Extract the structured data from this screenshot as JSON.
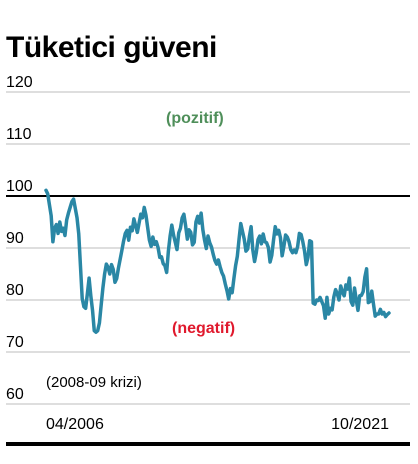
{
  "chart_data": {
    "type": "line",
    "title": "Tüketici güveni",
    "xlabel": "",
    "ylabel": "",
    "x_start": "04/2006",
    "x_end": "10/2021",
    "x_tick_labels": [
      "04/2006",
      "10/2021"
    ],
    "y_ticks": [
      60,
      70,
      80,
      90,
      100,
      110,
      120
    ],
    "ylim": [
      60,
      120
    ],
    "reference_line": 100,
    "grid": true,
    "annotations": {
      "positive": "(pozitif)",
      "negative": "(negatif)",
      "crisis": "(2008-09 krizi)"
    },
    "colors": {
      "line": "#2a87a5",
      "positive": "#4f8f5a",
      "negative": "#e0192d",
      "grid": "#bdbdbd",
      "reference": "#000000"
    },
    "series": [
      {
        "values": [
          101.1,
          100.4,
          98.3,
          96.2,
          91.2,
          93.8,
          94.5,
          92.8,
          95.0,
          93.2,
          93.8,
          92.4,
          95.4,
          96.7,
          97.8,
          98.9,
          99.4,
          97.6,
          95.8,
          92.7,
          86.5,
          80.3,
          78.7,
          78.4,
          81.2,
          84.2,
          80.8,
          78.0,
          74.1,
          73.8,
          74.1,
          75.6,
          79.0,
          82.3,
          85.0,
          86.9,
          86.3,
          85.0,
          86.8,
          85.9,
          83.4,
          84.1,
          86.1,
          87.8,
          89.5,
          91.3,
          92.8,
          93.4,
          91.5,
          94.0,
          93.3,
          95.6,
          94.3,
          93.0,
          94.8,
          96.5,
          95.8,
          97.8,
          96.3,
          93.9,
          91.5,
          90.3,
          92.1,
          90.7,
          91.2,
          90.1,
          88.2,
          88.3,
          87.0,
          86.6,
          85.3,
          89.4,
          92.3,
          94.4,
          92.5,
          91.1,
          89.7,
          92.9,
          93.8,
          95.8,
          96.5,
          94.3,
          91.7,
          93.5,
          93.0,
          90.6,
          91.1,
          95.0,
          96.1,
          94.8,
          96.7,
          93.5,
          91.5,
          89.9,
          92.3,
          91.0,
          90.2,
          88.8,
          87.6,
          86.9,
          87.7,
          86.4,
          85.3,
          84.6,
          83.1,
          81.8,
          80.2,
          82.2,
          81.4,
          84.1,
          86.6,
          88.4,
          91.7,
          94.7,
          93.2,
          91.7,
          89.4,
          89.8,
          92.2,
          94.1,
          89.6,
          87.4,
          89.1,
          91.6,
          92.3,
          90.8,
          92.7,
          91.2,
          91.0,
          90.1,
          87.3,
          88.6,
          91.5,
          94.1,
          92.7,
          93.4,
          92.0,
          88.5,
          90.3,
          92.5,
          92.1,
          91.2,
          89.7,
          89.1,
          89.6,
          89.1,
          90.3,
          92.8,
          92.6,
          91.2,
          89.4,
          86.8,
          88.2,
          91.4,
          91.2,
          79.4,
          79.2,
          80.0,
          79.9,
          80.5,
          79.7,
          78.9,
          76.5,
          80.5,
          77.3,
          78.4,
          78.1,
          80.6,
          82.0,
          81.2,
          80.0,
          82.7,
          81.5,
          80.8,
          82.9,
          82.1,
          84.2,
          79.7,
          79.0,
          82.3,
          80.0,
          78.0,
          80.8,
          80.9,
          81.6,
          84.4,
          86.0,
          79.5,
          79.7,
          81.7,
          79.2,
          76.9,
          77.3,
          77.3,
          78.2,
          77.3,
          77.6,
          76.8,
          77.2,
          77.5
        ]
      }
    ]
  }
}
